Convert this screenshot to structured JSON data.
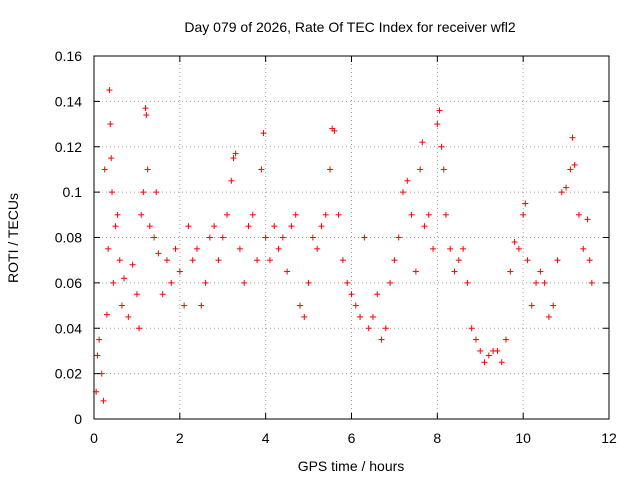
{
  "chart_data": {
    "type": "scatter",
    "title": "Day 079 of 2026, Rate Of TEC Index for receiver wfl2",
    "xlabel": "GPS time / hours",
    "ylabel": "ROTI / TECUs",
    "xlim": [
      0,
      12
    ],
    "ylim": [
      0,
      0.16
    ],
    "xticks": [
      0,
      2,
      4,
      6,
      8,
      10,
      12
    ],
    "xtick_labels": [
      "0",
      "2",
      "4",
      "6",
      "8",
      "10",
      "12"
    ],
    "yticks": [
      0,
      0.02,
      0.04,
      0.06,
      0.08,
      0.1,
      0.12,
      0.14,
      0.16
    ],
    "ytick_labels": [
      "0",
      "0.02",
      "0.04",
      "0.06",
      "0.08",
      "0.1",
      "0.12",
      "0.14",
      "0.16"
    ],
    "grid": true,
    "marker": "plus",
    "color": "#ff0000",
    "series": [
      {
        "name": "wfl2",
        "x_range": [
          0.0,
          11.6
        ],
        "points": [
          [
            0.05,
            0.012
          ],
          [
            0.08,
            0.028
          ],
          [
            0.12,
            0.035
          ],
          [
            0.18,
            0.02
          ],
          [
            0.22,
            0.008
          ],
          [
            0.25,
            0.11
          ],
          [
            0.3,
            0.046
          ],
          [
            0.33,
            0.075
          ],
          [
            0.36,
            0.145
          ],
          [
            0.38,
            0.13
          ],
          [
            0.4,
            0.115
          ],
          [
            0.42,
            0.1
          ],
          [
            0.45,
            0.06
          ],
          [
            0.5,
            0.085
          ],
          [
            0.55,
            0.09
          ],
          [
            0.6,
            0.07
          ],
          [
            0.65,
            0.05
          ],
          [
            0.7,
            0.062
          ],
          [
            0.8,
            0.045
          ],
          [
            0.9,
            0.068
          ],
          [
            1.0,
            0.055
          ],
          [
            1.05,
            0.04
          ],
          [
            1.1,
            0.09
          ],
          [
            1.15,
            0.1
          ],
          [
            1.2,
            0.137
          ],
          [
            1.22,
            0.134
          ],
          [
            1.25,
            0.11
          ],
          [
            1.3,
            0.085
          ],
          [
            1.4,
            0.08
          ],
          [
            1.45,
            0.1
          ],
          [
            1.5,
            0.073
          ],
          [
            1.6,
            0.055
          ],
          [
            1.7,
            0.07
          ],
          [
            1.8,
            0.06
          ],
          [
            1.9,
            0.075
          ],
          [
            2.0,
            0.065
          ],
          [
            2.1,
            0.05
          ],
          [
            2.2,
            0.085
          ],
          [
            2.3,
            0.07
          ],
          [
            2.4,
            0.075
          ],
          [
            2.5,
            0.05
          ],
          [
            2.6,
            0.06
          ],
          [
            2.7,
            0.08
          ],
          [
            2.8,
            0.085
          ],
          [
            2.9,
            0.07
          ],
          [
            3.0,
            0.08
          ],
          [
            3.1,
            0.09
          ],
          [
            3.2,
            0.105
          ],
          [
            3.25,
            0.115
          ],
          [
            3.3,
            0.117
          ],
          [
            3.4,
            0.075
          ],
          [
            3.5,
            0.06
          ],
          [
            3.6,
            0.085
          ],
          [
            3.7,
            0.09
          ],
          [
            3.8,
            0.07
          ],
          [
            3.9,
            0.11
          ],
          [
            3.95,
            0.126
          ],
          [
            4.0,
            0.08
          ],
          [
            4.1,
            0.07
          ],
          [
            4.2,
            0.085
          ],
          [
            4.3,
            0.075
          ],
          [
            4.4,
            0.08
          ],
          [
            4.5,
            0.065
          ],
          [
            4.6,
            0.085
          ],
          [
            4.7,
            0.09
          ],
          [
            4.8,
            0.05
          ],
          [
            4.9,
            0.045
          ],
          [
            5.0,
            0.06
          ],
          [
            5.1,
            0.08
          ],
          [
            5.2,
            0.075
          ],
          [
            5.3,
            0.085
          ],
          [
            5.4,
            0.09
          ],
          [
            5.5,
            0.11
          ],
          [
            5.55,
            0.128
          ],
          [
            5.6,
            0.127
          ],
          [
            5.7,
            0.09
          ],
          [
            5.8,
            0.07
          ],
          [
            5.9,
            0.06
          ],
          [
            6.0,
            0.055
          ],
          [
            6.1,
            0.05
          ],
          [
            6.2,
            0.045
          ],
          [
            6.3,
            0.08
          ],
          [
            6.4,
            0.04
          ],
          [
            6.5,
            0.045
          ],
          [
            6.6,
            0.055
          ],
          [
            6.7,
            0.035
          ],
          [
            6.8,
            0.04
          ],
          [
            6.9,
            0.06
          ],
          [
            7.0,
            0.07
          ],
          [
            7.1,
            0.08
          ],
          [
            7.2,
            0.1
          ],
          [
            7.3,
            0.105
          ],
          [
            7.4,
            0.09
          ],
          [
            7.5,
            0.065
          ],
          [
            7.6,
            0.11
          ],
          [
            7.65,
            0.122
          ],
          [
            7.7,
            0.085
          ],
          [
            7.8,
            0.09
          ],
          [
            7.9,
            0.075
          ],
          [
            8.0,
            0.13
          ],
          [
            8.05,
            0.136
          ],
          [
            8.1,
            0.12
          ],
          [
            8.15,
            0.11
          ],
          [
            8.2,
            0.09
          ],
          [
            8.3,
            0.075
          ],
          [
            8.4,
            0.065
          ],
          [
            8.5,
            0.07
          ],
          [
            8.6,
            0.075
          ],
          [
            8.7,
            0.06
          ],
          [
            8.8,
            0.04
          ],
          [
            8.9,
            0.035
          ],
          [
            9.0,
            0.03
          ],
          [
            9.1,
            0.025
          ],
          [
            9.2,
            0.028
          ],
          [
            9.3,
            0.03
          ],
          [
            9.4,
            0.03
          ],
          [
            9.5,
            0.025
          ],
          [
            9.6,
            0.035
          ],
          [
            9.7,
            0.065
          ],
          [
            9.8,
            0.078
          ],
          [
            9.9,
            0.075
          ],
          [
            10.0,
            0.09
          ],
          [
            10.05,
            0.095
          ],
          [
            10.1,
            0.07
          ],
          [
            10.2,
            0.05
          ],
          [
            10.3,
            0.06
          ],
          [
            10.4,
            0.065
          ],
          [
            10.5,
            0.06
          ],
          [
            10.6,
            0.045
          ],
          [
            10.7,
            0.05
          ],
          [
            10.8,
            0.07
          ],
          [
            10.9,
            0.1
          ],
          [
            11.0,
            0.102
          ],
          [
            11.1,
            0.11
          ],
          [
            11.15,
            0.124
          ],
          [
            11.2,
            0.112
          ],
          [
            11.3,
            0.09
          ],
          [
            11.4,
            0.075
          ],
          [
            11.5,
            0.088
          ],
          [
            11.55,
            0.07
          ],
          [
            11.6,
            0.06
          ]
        ]
      }
    ]
  }
}
